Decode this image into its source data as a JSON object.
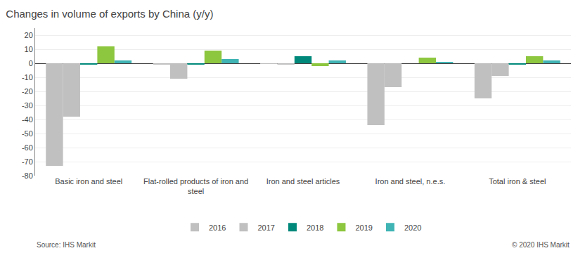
{
  "chart_data": {
    "type": "bar",
    "title": "Changes in volume of exports by China (y/y)",
    "categories": [
      "Basic iron and steel",
      "Flat-rolled products of iron and\nsteel",
      "Iron and steel articles",
      "Iron and steel, n.e.s.",
      "Total iron & steel"
    ],
    "series": [
      {
        "name": "2016",
        "color": "#c0c0c0",
        "values": [
          -73,
          -1,
          -0.5,
          -44,
          -25
        ]
      },
      {
        "name": "2017",
        "color": "#c0c0c0",
        "values": [
          -38,
          -11,
          -1,
          -17,
          -9
        ]
      },
      {
        "name": "2018",
        "color": "#00897b",
        "values": [
          -1,
          -1,
          5,
          0,
          -1
        ]
      },
      {
        "name": "2019",
        "color": "#8dc63f",
        "values": [
          12,
          9,
          -2,
          4,
          5
        ]
      },
      {
        "name": "2020",
        "color": "#40b4b4",
        "values": [
          2,
          3,
          2,
          1,
          2
        ]
      }
    ],
    "ylim": [
      -80,
      25
    ],
    "yticks": [
      -80,
      -70,
      -60,
      -50,
      -40,
      -30,
      -20,
      -10,
      0,
      10,
      20
    ],
    "grid": true,
    "legend": "bottom",
    "annotations": [
      "Source: IHS Markit",
      "© 2020 IHS Markit"
    ]
  }
}
